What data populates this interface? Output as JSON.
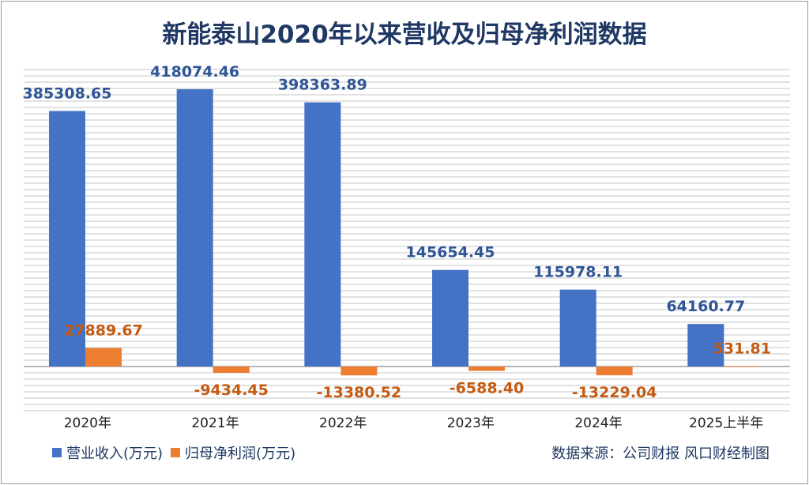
{
  "chart_data": {
    "type": "bar",
    "title": "新能泰山2020年以来营收及归母净利润数据",
    "categories": [
      "2020年",
      "2021年",
      "2022年",
      "2023年",
      "2024年",
      "2025上半年"
    ],
    "series": [
      {
        "name": "营业收入(万元)",
        "color": "#4472c4",
        "values": [
          385308.65,
          418074.46,
          398363.89,
          145654.45,
          115978.11,
          64160.77
        ],
        "labels": [
          "385308.65",
          "418074.46",
          "398363.89",
          "145654.45",
          "115978.11",
          "64160.77"
        ]
      },
      {
        "name": "归母净利润(万元)",
        "color": "#ed7d31",
        "values": [
          27889.67,
          -9434.45,
          -13380.52,
          -6588.4,
          -13229.04,
          531.81
        ],
        "labels": [
          "27889.67",
          "-9434.45",
          "-13380.52",
          "-6588.40",
          "-13229.04",
          "531.81"
        ]
      }
    ],
    "label_colors": {
      "revenue": "#2f5597",
      "profit": "#c55a11"
    },
    "grid": true,
    "legend_position": "bottom-left"
  },
  "source": "数据来源：公司财报 风口财经制图"
}
